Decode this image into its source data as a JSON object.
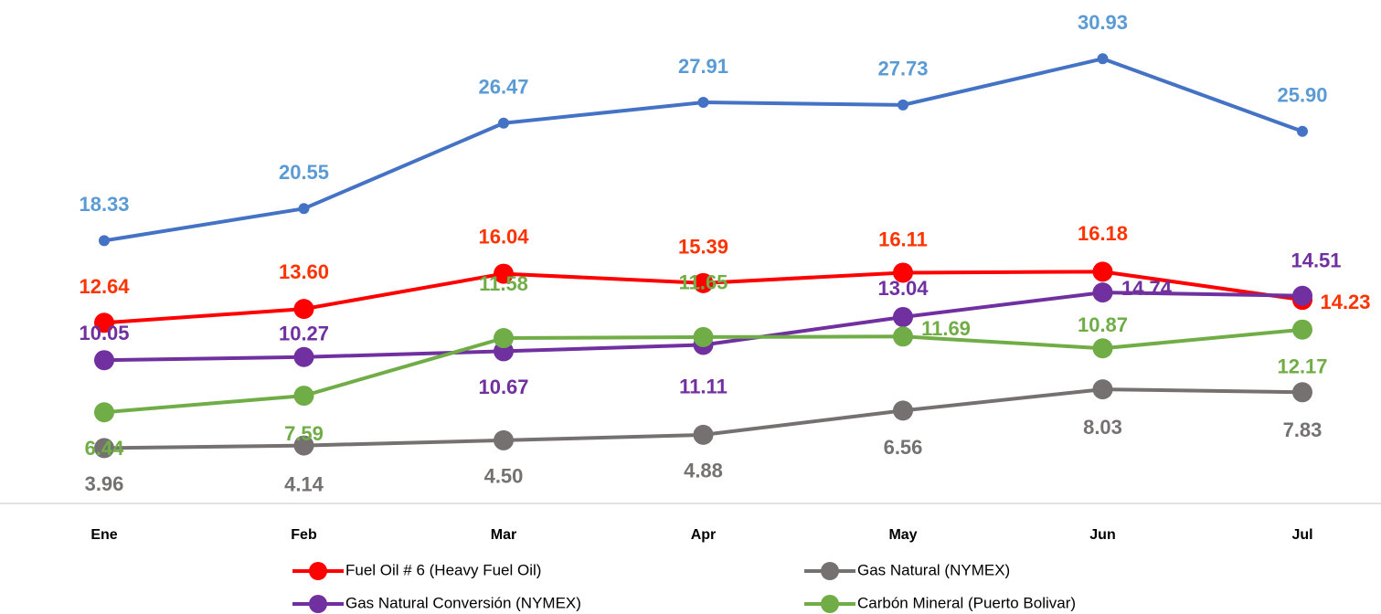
{
  "chart_data": {
    "type": "line",
    "categories": [
      "Ene",
      "Feb",
      "Mar",
      "Apr",
      "May",
      "Jun",
      "Jul"
    ],
    "ylim": [
      0,
      35
    ],
    "series": [
      {
        "color": "#4472c4",
        "label_color": "#5b9bd5",
        "values": [
          18.33,
          20.55,
          26.47,
          27.91,
          27.73,
          30.93,
          25.9
        ],
        "value_labels": [
          "18.33",
          "20.55",
          "26.47",
          "27.91",
          "27.73",
          "30.93",
          "25.90"
        ]
      },
      {
        "name": "Fuel Oil # 6 (Heavy Fuel Oil)",
        "color": "#ff0000",
        "label_color": "#ff3300",
        "values": [
          12.64,
          13.6,
          16.04,
          15.39,
          16.11,
          16.18,
          14.23
        ],
        "value_labels": [
          "12.64",
          "13.60",
          "16.04",
          "15.39",
          "16.11",
          "16.18",
          "14.23"
        ]
      },
      {
        "name": "Gas Natural (NYMEX)",
        "color": "#767171",
        "label_color": "#767171",
        "values": [
          3.96,
          4.14,
          4.5,
          4.88,
          6.56,
          8.03,
          7.83
        ],
        "value_labels": [
          "3.96",
          "4.14",
          "4.50",
          "4.88",
          "6.56",
          "8.03",
          "7.83"
        ]
      },
      {
        "name": "Gas Natural Conversión (NYMEX)",
        "color": "#7030a0",
        "label_color": "#7030a0",
        "values": [
          10.05,
          10.27,
          10.67,
          11.11,
          13.04,
          14.74,
          14.51
        ],
        "value_labels": [
          "10.05",
          "10.27",
          "10.67",
          "11.11",
          "13.04",
          "14.74",
          "14.51"
        ]
      },
      {
        "name": "Carbón Mineral (Puerto Bolivar)",
        "color": "#70ad47",
        "label_color": "#70ad47",
        "values": [
          6.44,
          7.59,
          11.58,
          11.65,
          11.69,
          10.87,
          12.17
        ],
        "value_labels": [
          "6.44",
          "7.59",
          "11.58",
          "11.65",
          "11.69",
          "10.87",
          "12.17"
        ]
      }
    ]
  }
}
